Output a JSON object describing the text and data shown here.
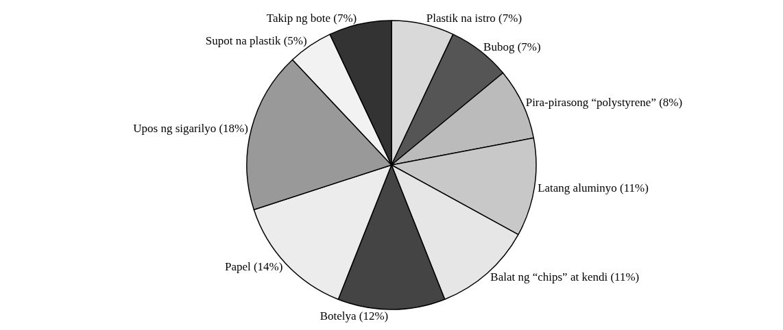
{
  "chart_data": {
    "type": "pie",
    "categories": [
      "Plastik na istro",
      "Bubog",
      "Pira-pirasong “polystyrene”",
      "Latang aluminyo",
      "Balat ng “chips” at kendi",
      "Botelya",
      "Papel",
      "Upos ng sigarilyo",
      "Supot na plastik",
      "Takip ng bote"
    ],
    "values": [
      7,
      7,
      8,
      11,
      11,
      12,
      14,
      18,
      5,
      7
    ],
    "value_labels": [
      "(7%)",
      "(7%)",
      "(8%)",
      "(11%)",
      "(11%)",
      "(12%)",
      "(14%)",
      "(18%)",
      "(5%)",
      "(7%)"
    ],
    "colors": [
      "#d9d9d9",
      "#555555",
      "#bbbbbb",
      "#c8c8c8",
      "#e6e6e6",
      "#444444",
      "#ececec",
      "#999999",
      "#f2f2f2",
      "#333333"
    ],
    "legend": false
  }
}
